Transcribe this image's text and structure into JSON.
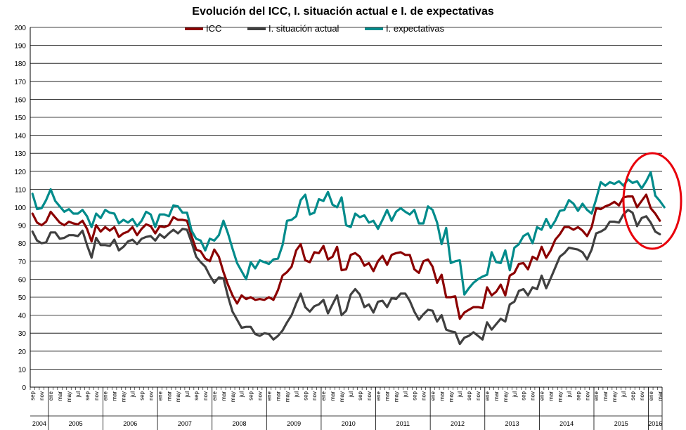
{
  "chart_data": {
    "type": "line",
    "title": "Evolución del ICC, I. situación actual e I. de expectativas",
    "xlabel": "",
    "ylabel": "",
    "ylim": [
      0,
      200
    ],
    "yticks": [
      0,
      10,
      20,
      30,
      40,
      50,
      60,
      70,
      80,
      90,
      100,
      110,
      120,
      130,
      140,
      150,
      160,
      170,
      180,
      190,
      200
    ],
    "grid": true,
    "legend_position": "top",
    "x_start": "2004-09",
    "x_end": "2016-03",
    "month_tick_labels": [
      "sep",
      "nov",
      "ene",
      "mar",
      "may",
      "jul",
      "sep",
      "nov",
      "ene",
      "mar",
      "may",
      "jul",
      "sep",
      "nov",
      "ene",
      "mar",
      "may",
      "jul",
      "sep",
      "nov",
      "ene",
      "mar",
      "may",
      "jul",
      "sep",
      "nov",
      "ene",
      "mar",
      "may",
      "jul",
      "sep",
      "nov",
      "ene",
      "mar",
      "may",
      "jul",
      "sep",
      "nov",
      "ene",
      "mar",
      "may",
      "jul",
      "sep",
      "nov",
      "ene",
      "mar",
      "may",
      "jul",
      "sep",
      "nov",
      "ene",
      "mar",
      "may",
      "jul",
      "sep",
      "nov",
      "ene",
      "mar",
      "may",
      "jul",
      "sep",
      "nov",
      "ene",
      "mar",
      "may",
      "jul",
      "sep",
      "nov",
      "ene",
      "mar"
    ],
    "years": [
      "2004",
      "2005",
      "2006",
      "2007",
      "2008",
      "2009",
      "2010",
      "2011",
      "2012",
      "2013",
      "2014",
      "2015",
      "2016"
    ],
    "series": [
      {
        "name": "ICC",
        "color": "#8b0000",
        "values": [
          96.5,
          91.5,
          90,
          92,
          97.5,
          94.5,
          91.5,
          90,
          92,
          91,
          90.5,
          92.5,
          88,
          81,
          90,
          86.5,
          89,
          87,
          89,
          83.5,
          85.5,
          86.5,
          89,
          84.5,
          88,
          90.5,
          89.5,
          85.5,
          89.5,
          89,
          90,
          94.5,
          93,
          93,
          92.5,
          84,
          76.5,
          75.5,
          71.5,
          70,
          76.5,
          72.5,
          64,
          57,
          51,
          46.5,
          51,
          49,
          50,
          48.5,
          49,
          48.5,
          50,
          48.5,
          54,
          62,
          64,
          67,
          76,
          79.5,
          70.5,
          69.5,
          75,
          74.5,
          78.5,
          71,
          72.5,
          78,
          65,
          65.5,
          73.5,
          74.5,
          72.5,
          67.5,
          69,
          64.5,
          70,
          73,
          68,
          73.5,
          74.5,
          75,
          73.5,
          73.5,
          65.5,
          63.5,
          70,
          71,
          67,
          58,
          62.5,
          50,
          50,
          50.5,
          38,
          41.5,
          43,
          44.5,
          44.5,
          44,
          55.5,
          51,
          53,
          57,
          51,
          62,
          63.5,
          68.5,
          69,
          65.5,
          72.5,
          71,
          78,
          72,
          76,
          82,
          85,
          89,
          89,
          87.5,
          89,
          87,
          84,
          89,
          99.5,
          99,
          100.5,
          101.5,
          103,
          101,
          105.5,
          106,
          106,
          100,
          103.5,
          107,
          99.5,
          96.5,
          92.5
        ]
      },
      {
        "name": "I. situación actual",
        "color": "#404040",
        "values": [
          86.5,
          81.5,
          80,
          80.5,
          86,
          86,
          82.5,
          83,
          84.5,
          84.5,
          84,
          87,
          79,
          72,
          83,
          79,
          79,
          78.5,
          82,
          76,
          78,
          81,
          82,
          79.5,
          82.5,
          83.5,
          84,
          81.5,
          85,
          83,
          85.5,
          87.5,
          85.5,
          88,
          87.5,
          80.5,
          72.5,
          69.5,
          67,
          62,
          58,
          61,
          60.5,
          50.5,
          42,
          37.5,
          33,
          33.5,
          33.5,
          29.5,
          28.5,
          30,
          29.5,
          26.5,
          28.5,
          31.5,
          36,
          40,
          46.5,
          52,
          44.5,
          42,
          45,
          46,
          48.5,
          41,
          46,
          51,
          40,
          42.5,
          51.5,
          54.5,
          51.5,
          44.5,
          46,
          41.5,
          47.5,
          48,
          44.5,
          49.5,
          49,
          52,
          52,
          48,
          42,
          37.5,
          40.5,
          43,
          42.5,
          36.5,
          40,
          32,
          31,
          30.5,
          24,
          27.5,
          28.5,
          30.5,
          28.5,
          26.5,
          36,
          32,
          35,
          38,
          36.5,
          46,
          47.5,
          53.5,
          54.5,
          51,
          55.5,
          54.5,
          62,
          55,
          60.5,
          66.5,
          72.5,
          74.5,
          77.5,
          77,
          76.5,
          75,
          71,
          76.5,
          85.5,
          86.5,
          88,
          92,
          92,
          91.5,
          96,
          98.5,
          97,
          89.5,
          94,
          95,
          91.5,
          86.5,
          85
        ]
      },
      {
        "name": "I. expectativas",
        "color": "#008b8b",
        "values": [
          107.5,
          99,
          99.5,
          104,
          110,
          103.5,
          100.5,
          97.5,
          99,
          96.5,
          96.5,
          98.5,
          95,
          89,
          96.5,
          94,
          98.5,
          97,
          96.5,
          91,
          93,
          91.5,
          93.5,
          89.5,
          92.5,
          97.5,
          96,
          89,
          96,
          96,
          95,
          101,
          100.5,
          97,
          97,
          87,
          82.5,
          81.5,
          76,
          82.5,
          81.5,
          84.5,
          92.5,
          85.5,
          77,
          69,
          64.5,
          60,
          69.5,
          66,
          70.5,
          69.5,
          68.5,
          71,
          71.5,
          79,
          92.5,
          93,
          95,
          104,
          107,
          96,
          97,
          104.5,
          103.5,
          108.5,
          101.5,
          100,
          105.5,
          90,
          89,
          96.5,
          94.5,
          95.5,
          91.5,
          92.5,
          88,
          93,
          98.5,
          92.5,
          97.5,
          99.5,
          97.5,
          96,
          98.5,
          91,
          91,
          100.5,
          98.5,
          91.5,
          79.5,
          88.5,
          69,
          70,
          70.5,
          51.5,
          55,
          58,
          60,
          61.5,
          62.5,
          75,
          69.5,
          69,
          76,
          65,
          77.5,
          79.5,
          84,
          85.5,
          80,
          89,
          87.5,
          93.5,
          88.5,
          92.5,
          98,
          98.5,
          104,
          102,
          98,
          102,
          98.5,
          96.5,
          104.5,
          114,
          112,
          114,
          113,
          114.5,
          112,
          115.5,
          113.5,
          114.5,
          110.5,
          114.5,
          119.5,
          106.5,
          103.5,
          100
        ]
      }
    ]
  }
}
